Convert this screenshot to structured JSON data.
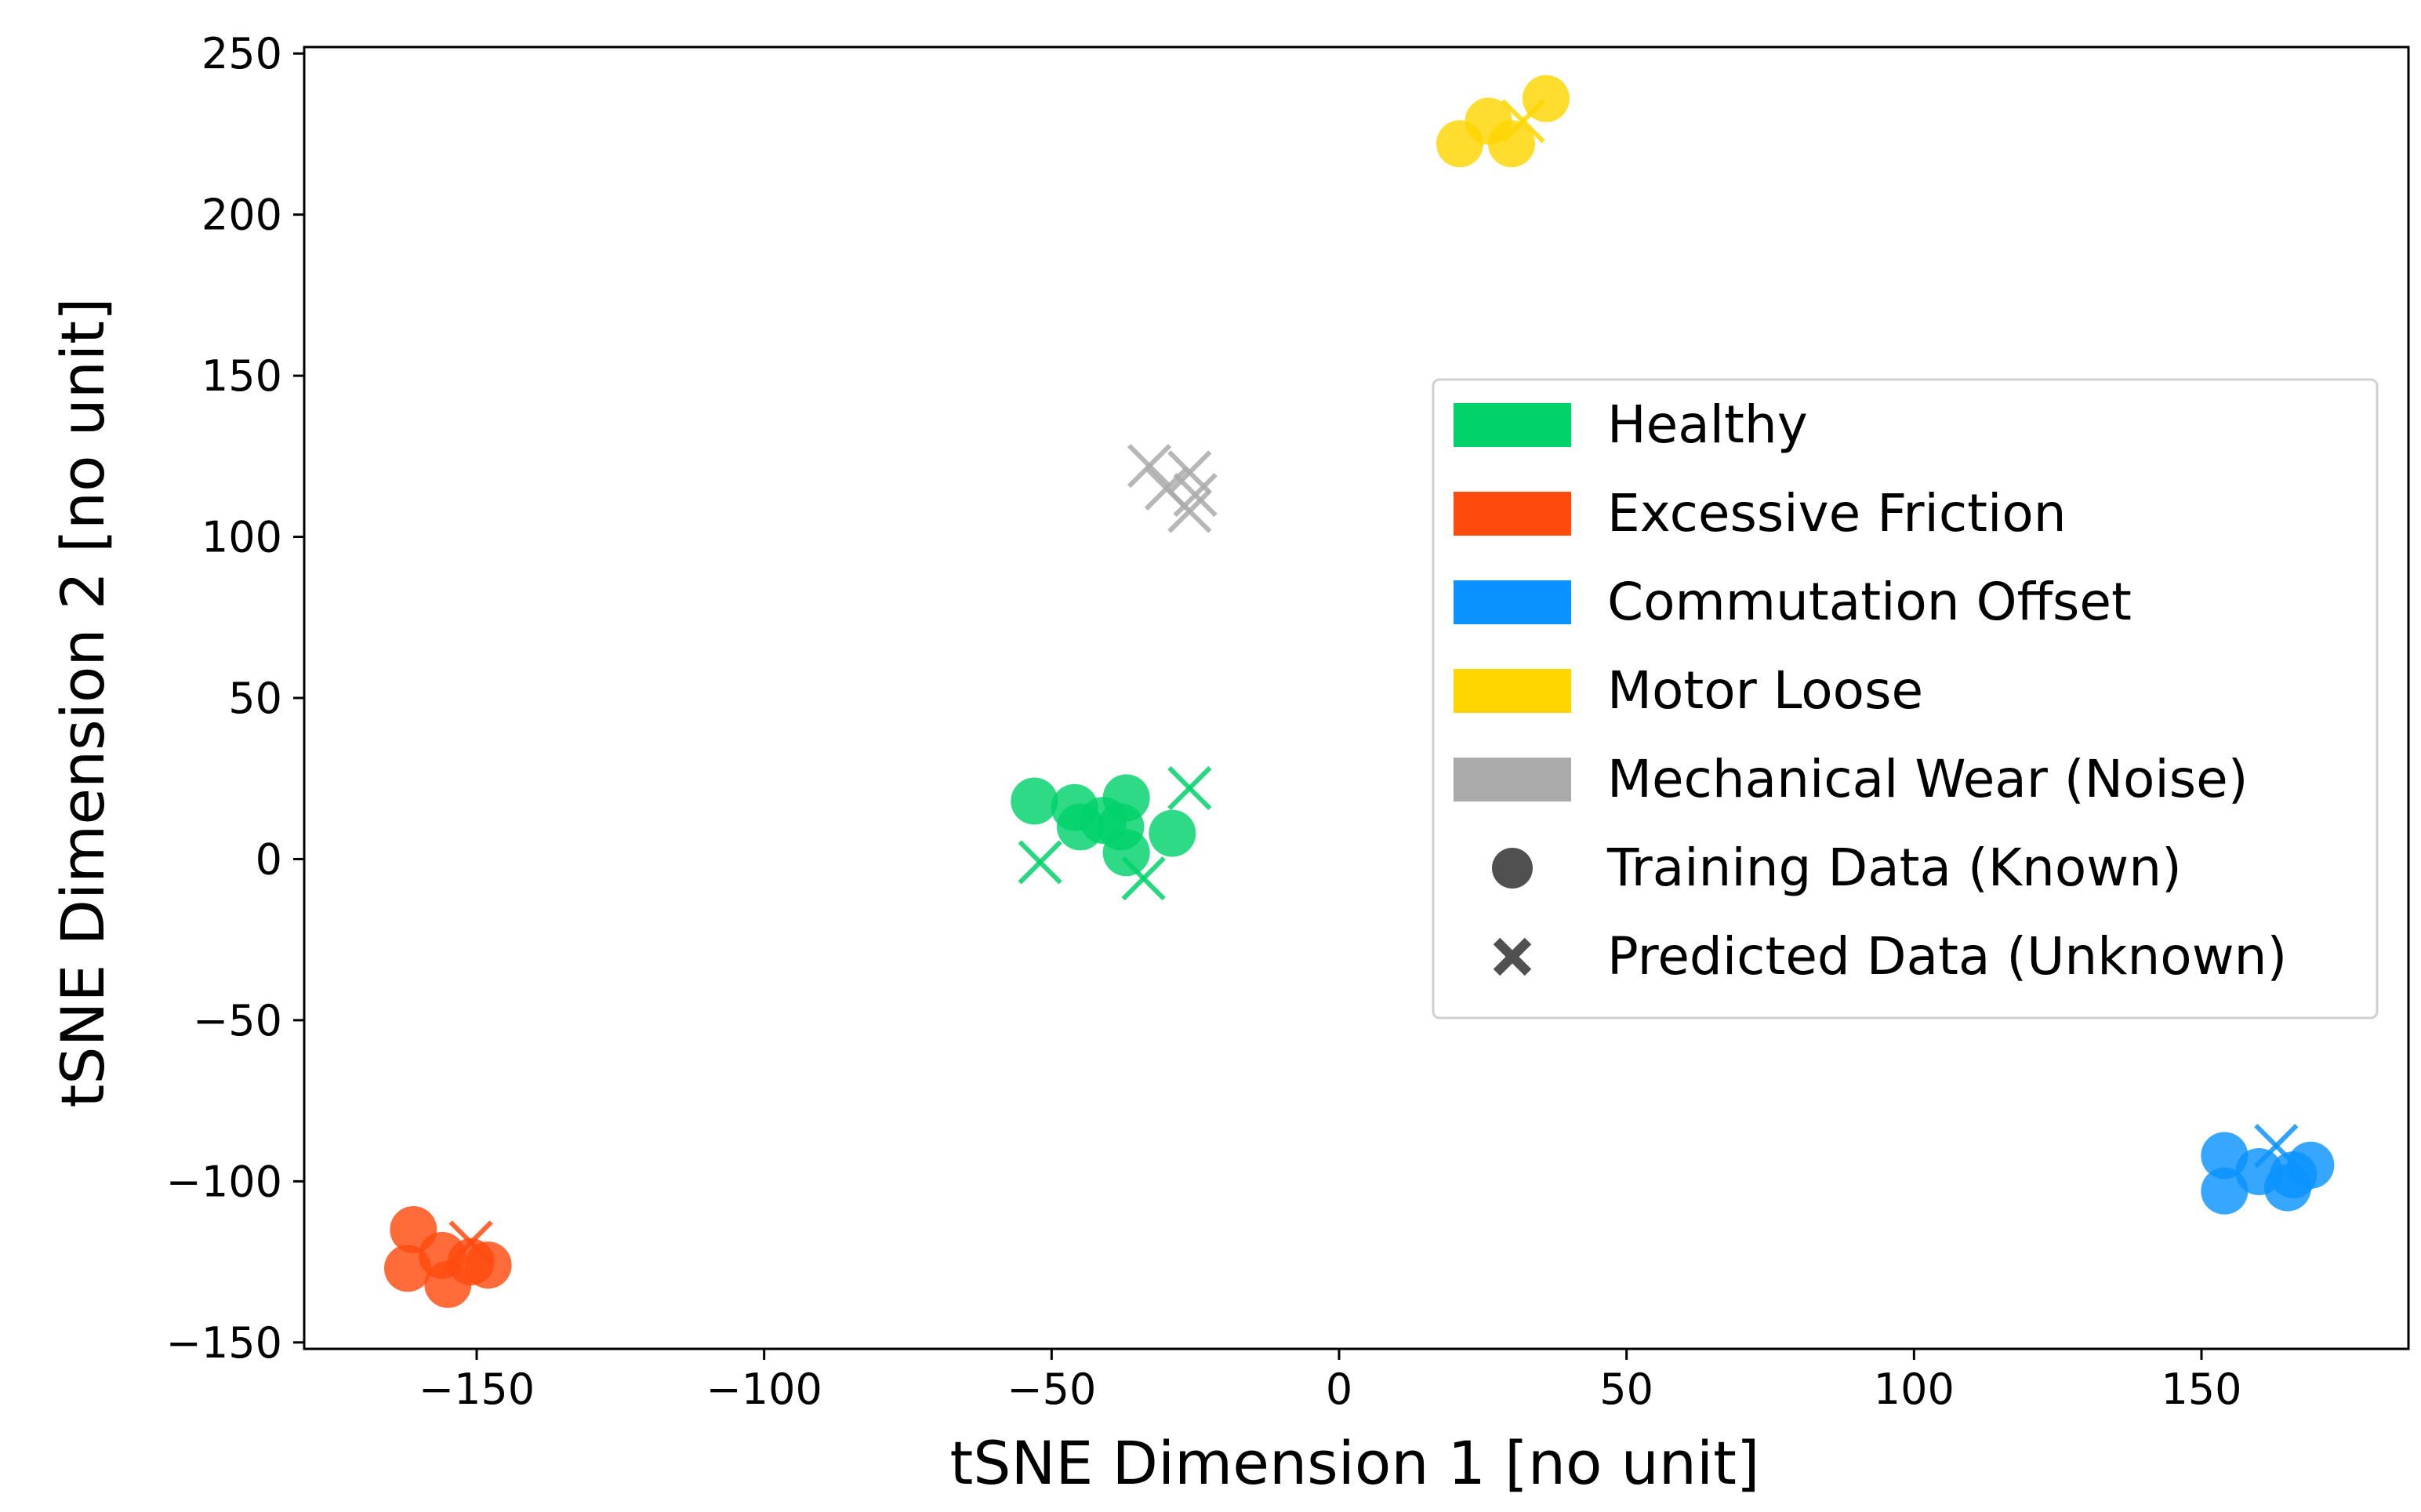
{
  "chart_data": {
    "type": "scatter",
    "title": "",
    "xlabel": "tSNE Dimension 1 [no unit]",
    "ylabel": "tSNE Dimension 2 [no unit]",
    "xlim": [
      -180,
      186
    ],
    "ylim": [
      -152,
      252
    ],
    "xticks": [
      -150,
      -100,
      -50,
      0,
      50,
      100,
      150
    ],
    "yticks": [
      -150,
      -100,
      -50,
      0,
      50,
      100,
      150,
      200,
      250
    ],
    "xtick_labels": [
      "−150",
      "−100",
      "−50",
      "0",
      "50",
      "100",
      "150"
    ],
    "ytick_labels": [
      "−150",
      "−100",
      "−50",
      "0",
      "50",
      "100",
      "150",
      "200",
      "250"
    ],
    "grid": false,
    "legend_position": "center-right",
    "series": [
      {
        "name": "Healthy",
        "color": "#00d26a",
        "training": [
          [
            -53,
            18
          ],
          [
            -46,
            16
          ],
          [
            -37,
            19
          ],
          [
            -38,
            10
          ],
          [
            -45,
            10
          ],
          [
            -37,
            2
          ],
          [
            -29,
            8
          ],
          [
            -41,
            12
          ]
        ],
        "predicted": [
          [
            -52,
            -1
          ],
          [
            -34,
            -6
          ],
          [
            -26,
            22
          ]
        ]
      },
      {
        "name": "Excessive Friction",
        "color": "#ff4a0e",
        "training": [
          [
            -161,
            -115
          ],
          [
            -156,
            -123
          ],
          [
            -162,
            -127
          ],
          [
            -148,
            -126
          ],
          [
            -155,
            -132
          ],
          [
            -151,
            -125
          ]
        ],
        "predicted": [
          [
            -151,
            -119
          ]
        ]
      },
      {
        "name": "Commutation Offset",
        "color": "#0a93ff",
        "training": [
          [
            154,
            -92
          ],
          [
            154,
            -103
          ],
          [
            160,
            -97
          ],
          [
            165,
            -102
          ],
          [
            169,
            -95
          ],
          [
            166,
            -98
          ]
        ],
        "predicted": [
          [
            163,
            -89
          ]
        ]
      },
      {
        "name": "Motor Loose",
        "color": "#ffd600",
        "training": [
          [
            21,
            222
          ],
          [
            26,
            229
          ],
          [
            30,
            222
          ],
          [
            36,
            236
          ]
        ],
        "predicted": [
          [
            32,
            229
          ]
        ]
      },
      {
        "name": "Mechanical Wear (Noise)",
        "color": "#aaaaaa",
        "training": [],
        "predicted": [
          [
            -33,
            122
          ],
          [
            -30,
            115
          ],
          [
            -26,
            120
          ],
          [
            -25,
            113
          ],
          [
            -26,
            108
          ]
        ]
      }
    ],
    "legend": {
      "entries": [
        {
          "label": "Healthy",
          "color": "#00d26a",
          "marker": "patch"
        },
        {
          "label": "Excessive Friction",
          "color": "#ff4a0e",
          "marker": "patch"
        },
        {
          "label": "Commutation Offset",
          "color": "#0a93ff",
          "marker": "patch"
        },
        {
          "label": "Motor Loose",
          "color": "#ffd600",
          "marker": "patch"
        },
        {
          "label": "Mechanical Wear (Noise)",
          "color": "#aaaaaa",
          "marker": "patch"
        },
        {
          "label": "Training Data (Known)",
          "color": "#505050",
          "marker": "circle"
        },
        {
          "label": "Predicted Data (Unknown)",
          "color": "#505050",
          "marker": "x"
        }
      ]
    }
  }
}
